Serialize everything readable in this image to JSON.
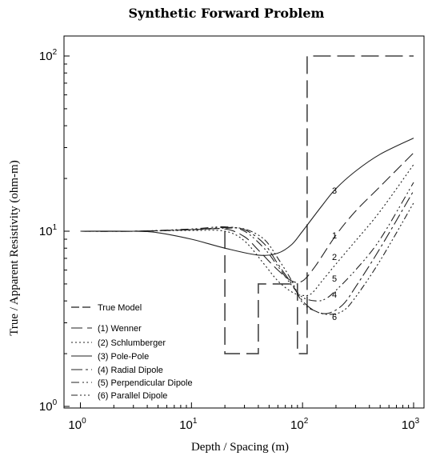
{
  "chart_data": {
    "type": "line",
    "title": "Synthetic Forward Problem",
    "xlabel": "Depth / Spacing (m)",
    "ylabel": "True / Apparent Resistivity (ohm-m)",
    "x_scale": "log",
    "y_scale": "log",
    "xlim": [
      1,
      1000
    ],
    "ylim": [
      1,
      150
    ],
    "x_ticks": [
      {
        "value": 1,
        "base": "10",
        "exp": "0"
      },
      {
        "value": 10,
        "base": "10",
        "exp": "1"
      },
      {
        "value": 100,
        "base": "10",
        "exp": "2"
      },
      {
        "value": 1000,
        "base": "10",
        "exp": "3"
      }
    ],
    "y_ticks": [
      {
        "value": 1,
        "base": "10",
        "exp": "0"
      },
      {
        "value": 10,
        "base": "10",
        "exp": "1"
      },
      {
        "value": 100,
        "base": "10",
        "exp": "2"
      }
    ],
    "legend_placement": "lower-left",
    "true_model": {
      "name": "True Model",
      "x": [
        20,
        20,
        40,
        40,
        90,
        90,
        110,
        110,
        1000
      ],
      "y": [
        10,
        2,
        2,
        5,
        5,
        2,
        2,
        100,
        100
      ]
    },
    "series": [
      {
        "name": "(1) Wenner",
        "label": "1",
        "dash": "14,6",
        "x": [
          1,
          3,
          10,
          20,
          30,
          40,
          60,
          80,
          100,
          130,
          200,
          300,
          500,
          1000
        ],
        "y": [
          10,
          10,
          10.2,
          10.3,
          9.3,
          7.8,
          6.0,
          5.2,
          5.2,
          6.3,
          9.5,
          13.0,
          18.0,
          28.0
        ]
      },
      {
        "name": "(2) Schlumberger",
        "label": "2",
        "dash": "2,3",
        "x": [
          1,
          3,
          10,
          20,
          30,
          45,
          60,
          80,
          100,
          120,
          150,
          200,
          300,
          500,
          1000
        ],
        "y": [
          10,
          10,
          10.1,
          10.0,
          8.8,
          6.5,
          5.2,
          4.5,
          4.3,
          4.4,
          5.2,
          6.5,
          8.8,
          13.0,
          24.0
        ]
      },
      {
        "name": "(3) Pole-Pole",
        "label": "3",
        "dash": "",
        "x": [
          1,
          3,
          5,
          10,
          20,
          40,
          60,
          80,
          100,
          150,
          200,
          300,
          500,
          1000
        ],
        "y": [
          10,
          10,
          9.8,
          9.0,
          8.0,
          7.3,
          7.5,
          8.4,
          10.0,
          14.0,
          17.5,
          22.0,
          27.5,
          34.0
        ]
      },
      {
        "name": "(4) Radial Dipole",
        "label": "4",
        "dash": "14,4,3,4",
        "x": [
          1,
          3,
          10,
          20,
          30,
          45,
          60,
          80,
          100,
          130,
          170,
          230,
          300,
          500,
          1000
        ],
        "y": [
          10,
          10,
          10.2,
          10.5,
          10.2,
          8.5,
          6.5,
          5.0,
          4.0,
          3.5,
          3.4,
          3.8,
          4.8,
          8.0,
          17.0
        ]
      },
      {
        "name": "(5) Perpendicular Dipole",
        "label": "5",
        "dash": "10,4,2,3,2,4",
        "x": [
          1,
          3,
          10,
          20,
          30,
          45,
          60,
          80,
          100,
          130,
          160,
          200,
          300,
          500,
          1000
        ],
        "y": [
          10,
          10,
          10.3,
          10.6,
          10.0,
          8.0,
          6.3,
          4.9,
          4.2,
          4.0,
          4.1,
          4.6,
          6.0,
          9.0,
          19.0
        ]
      },
      {
        "name": "(6) Parallel Dipole",
        "label": "6",
        "dash": "8,3,2,3,2,3,2,3",
        "x": [
          1,
          3,
          10,
          20,
          30,
          45,
          60,
          80,
          100,
          130,
          170,
          230,
          300,
          500,
          1000
        ],
        "y": [
          10,
          10,
          10.2,
          10.4,
          10.3,
          9.0,
          7.0,
          5.2,
          3.9,
          3.5,
          3.35,
          3.5,
          4.2,
          6.8,
          14.5
        ]
      }
    ]
  }
}
